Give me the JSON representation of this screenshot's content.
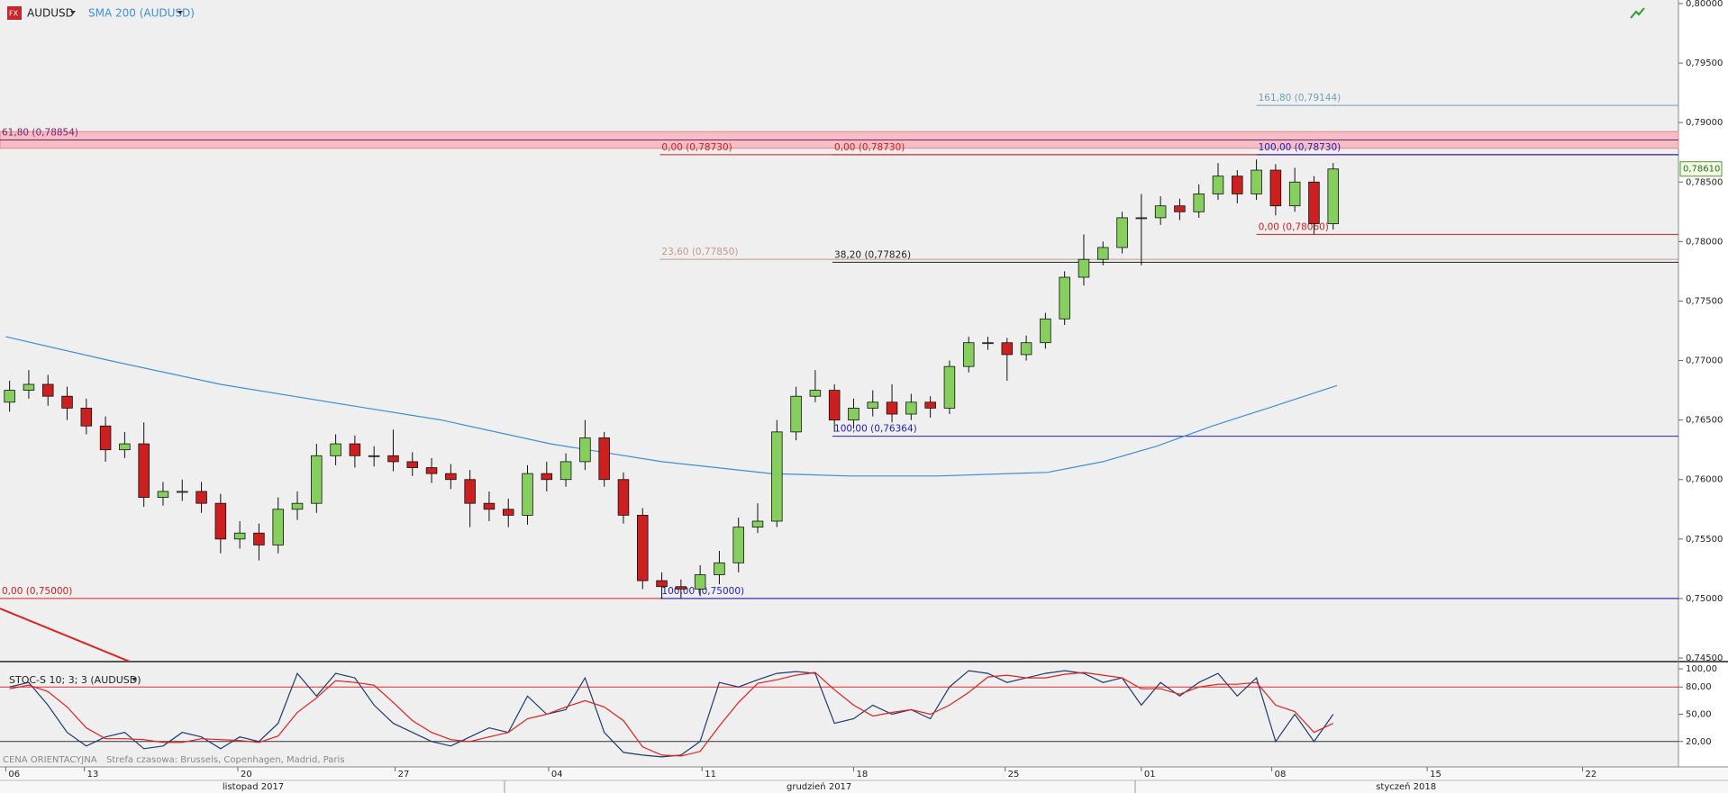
{
  "header": {
    "symbol": "AUDUSD"
  },
  "footer": {
    "price_note": "CENA ORIENTACYJNA",
    "timezone": "Strefa czasowa: Brussels, Copenhagen, Madrid, Paris"
  },
  "chart_data": [
    {
      "type": "candlestick",
      "open": [
        0.7665,
        0.7675,
        0.768,
        0.767,
        0.766,
        0.7645,
        0.7625,
        0.763,
        0.7585,
        0.759,
        0.759,
        0.758,
        0.755,
        0.7555,
        0.7545,
        0.7575,
        0.758,
        0.762,
        0.763,
        0.762,
        0.762,
        0.7615,
        0.761,
        0.7605,
        0.76,
        0.758,
        0.7575,
        0.757,
        0.7605,
        0.76,
        0.7615,
        0.7635,
        0.76,
        0.757,
        0.7515,
        0.751,
        0.7508,
        0.752,
        0.753,
        0.756,
        0.7565,
        0.764,
        0.767,
        0.7675,
        0.765,
        0.766,
        0.7665,
        0.7655,
        0.7665,
        0.766,
        0.7695,
        0.7715,
        0.7715,
        0.7705,
        0.7715,
        0.7735,
        0.777,
        0.7785,
        0.7795,
        0.782,
        0.782,
        0.783,
        0.7825,
        0.784,
        0.7855,
        0.784,
        0.786,
        0.783,
        0.785,
        0.7815
      ],
      "high": [
        0.7683,
        0.7692,
        0.7688,
        0.7678,
        0.7668,
        0.7653,
        0.764,
        0.7648,
        0.7598,
        0.76,
        0.7598,
        0.7588,
        0.7565,
        0.7563,
        0.7585,
        0.759,
        0.763,
        0.7638,
        0.7637,
        0.7628,
        0.7642,
        0.7623,
        0.7618,
        0.7613,
        0.7608,
        0.759,
        0.7584,
        0.7612,
        0.7615,
        0.7622,
        0.765,
        0.764,
        0.7606,
        0.7576,
        0.7522,
        0.7516,
        0.7528,
        0.754,
        0.7568,
        0.758,
        0.765,
        0.7678,
        0.7692,
        0.768,
        0.7668,
        0.7675,
        0.768,
        0.7672,
        0.767,
        0.77,
        0.772,
        0.772,
        0.7719,
        0.7721,
        0.774,
        0.7775,
        0.7806,
        0.78,
        0.7825,
        0.784,
        0.7838,
        0.7836,
        0.7848,
        0.7866,
        0.786,
        0.7869,
        0.7865,
        0.7862,
        0.7855,
        0.7866
      ],
      "low": [
        0.7657,
        0.7668,
        0.7662,
        0.765,
        0.7638,
        0.7615,
        0.7618,
        0.7577,
        0.7578,
        0.7582,
        0.7572,
        0.7538,
        0.7542,
        0.7532,
        0.7538,
        0.7566,
        0.7572,
        0.7612,
        0.761,
        0.7611,
        0.7607,
        0.7603,
        0.7597,
        0.7592,
        0.756,
        0.7565,
        0.756,
        0.7562,
        0.759,
        0.7594,
        0.7608,
        0.7594,
        0.7563,
        0.7508,
        0.75,
        0.75,
        0.7502,
        0.7512,
        0.7522,
        0.7555,
        0.756,
        0.7633,
        0.7665,
        0.764,
        0.7643,
        0.7653,
        0.7648,
        0.765,
        0.7652,
        0.7655,
        0.769,
        0.7709,
        0.7683,
        0.77,
        0.771,
        0.773,
        0.7763,
        0.778,
        0.779,
        0.778,
        0.7814,
        0.7818,
        0.782,
        0.7835,
        0.7832,
        0.7835,
        0.7822,
        0.7825,
        0.7806,
        0.781
      ],
      "close": [
        0.7675,
        0.768,
        0.767,
        0.766,
        0.7645,
        0.7625,
        0.763,
        0.7585,
        0.759,
        0.759,
        0.758,
        0.755,
        0.7555,
        0.7545,
        0.7575,
        0.758,
        0.762,
        0.763,
        0.762,
        0.762,
        0.7615,
        0.761,
        0.7605,
        0.76,
        0.758,
        0.7575,
        0.757,
        0.7605,
        0.76,
        0.7615,
        0.7635,
        0.76,
        0.757,
        0.7515,
        0.751,
        0.7508,
        0.752,
        0.753,
        0.756,
        0.7565,
        0.764,
        0.767,
        0.7675,
        0.765,
        0.766,
        0.7665,
        0.7655,
        0.7665,
        0.766,
        0.7695,
        0.7715,
        0.7715,
        0.7705,
        0.7715,
        0.7735,
        0.777,
        0.7785,
        0.7795,
        0.782,
        0.782,
        0.783,
        0.7825,
        0.784,
        0.7855,
        0.784,
        0.786,
        0.783,
        0.785,
        0.7815,
        0.7861
      ],
      "up_color": "#86cf5e",
      "down_color": "#cc1f1f",
      "xlim": [
        0,
        87.5
      ],
      "ylim": [
        0.7447,
        0.8003
      ],
      "yticks": [
        {
          "value": 0.745,
          "label": "0,74500"
        },
        {
          "value": 0.75,
          "label": "0,75000"
        },
        {
          "value": 0.755,
          "label": "0,75500"
        },
        {
          "value": 0.76,
          "label": "0,76000"
        },
        {
          "value": 0.765,
          "label": "0,76500"
        },
        {
          "value": 0.77,
          "label": "0,77000"
        },
        {
          "value": 0.775,
          "label": "0,77500"
        },
        {
          "value": 0.78,
          "label": "0,78000"
        },
        {
          "value": 0.785,
          "label": "0,78500"
        },
        {
          "value": 0.79,
          "label": "0,79000"
        },
        {
          "value": 0.795,
          "label": "0,79500"
        },
        {
          "value": 0.8,
          "label": "0,80000"
        }
      ],
      "xticks": [
        {
          "value": 0.3,
          "label": "06"
        },
        {
          "value": 4.4,
          "label": "13"
        },
        {
          "value": 12.4,
          "label": "20"
        },
        {
          "value": 20.6,
          "label": "27"
        },
        {
          "value": 28.6,
          "label": "04"
        },
        {
          "value": 36.6,
          "label": "11"
        },
        {
          "value": 44.5,
          "label": "18"
        },
        {
          "value": 52.4,
          "label": "25"
        },
        {
          "value": 59.5,
          "label": "01"
        },
        {
          "value": 66.3,
          "label": "08"
        },
        {
          "value": 74.4,
          "label": "15"
        },
        {
          "value": 82.5,
          "label": "22"
        }
      ],
      "months": [
        {
          "value": 13.2,
          "label": "listopad 2017"
        },
        {
          "value": 42.7,
          "label": "grudzień 2017"
        },
        {
          "value": 73.3,
          "label": "styczeń 2018"
        }
      ],
      "series": [
        {
          "name": "SMA 200 (AUDUSD)",
          "color": "#3d8fd6",
          "x": [
            0.3,
            5.7,
            11.5,
            17.2,
            23,
            28.7,
            34.5,
            40.2,
            44.3,
            48.9,
            54.6,
            57.5,
            60.3,
            63.2,
            66.1,
            69.7
          ],
          "values": [
            0.772,
            0.77,
            0.768,
            0.7665,
            0.765,
            0.763,
            0.7615,
            0.7605,
            0.7603,
            0.7603,
            0.7606,
            0.7615,
            0.7628,
            0.7645,
            0.766,
            0.7679
          ]
        }
      ],
      "levels": [
        {
          "label": "61,80 (0,78854)",
          "value": 0.78854,
          "x": 0,
          "color": "#7a1f6e",
          "band": true
        },
        {
          "label": "161,80 (0,79144)",
          "value": 0.79144,
          "x": 65.5,
          "color": "#6f9fb8"
        },
        {
          "label": "0,00 (0,78730)",
          "value": 0.7873,
          "x": 34.4,
          "color": "#d02020"
        },
        {
          "label": "0,00 (0,78730)",
          "value": 0.7873,
          "x": 43.4,
          "color": "#d02020"
        },
        {
          "label": "100,00 (0,78730)",
          "value": 0.7873,
          "x": 65.5,
          "color": "#2020c0"
        },
        {
          "label": "0,00 (0,78060)",
          "value": 0.7806,
          "x": 65.5,
          "color": "#d02020"
        },
        {
          "label": "23,60 (0,77850)",
          "value": 0.7785,
          "x": 34.4,
          "color": "#c09a8a"
        },
        {
          "label": "38,20 (0,77826)",
          "value": 0.77826,
          "x": 43.4,
          "color": "#222222"
        },
        {
          "label": "100,00 (0,76364)",
          "value": 0.76364,
          "x": 43.4,
          "color": "#2020c0"
        },
        {
          "label": "0,00 (0,75000)",
          "value": 0.75,
          "x": 0,
          "color": "#d02020"
        },
        {
          "label": "100,00 (0,75000)",
          "value": 0.75,
          "x": 34.4,
          "color": "#2020c0"
        }
      ],
      "last_price": {
        "value": 0.7861,
        "label": "0,78610"
      }
    },
    {
      "type": "line",
      "title": "STOC-S 10; 3; 3 (AUDUSD)",
      "ylim": [
        -8,
        106
      ],
      "yticks": [
        {
          "value": 20,
          "label": "20,00"
        },
        {
          "value": 50,
          "label": "50,00"
        },
        {
          "value": 80,
          "label": "80,00"
        },
        {
          "value": 100,
          "label": "100,00"
        }
      ],
      "hlines": [
        {
          "value": 80,
          "color": "#e03030"
        },
        {
          "value": 20,
          "color": "#333333"
        }
      ],
      "series": [
        {
          "color": "#1f3a6e",
          "values": [
            80,
            85,
            60,
            30,
            15,
            25,
            30,
            12,
            15,
            30,
            25,
            12,
            25,
            20,
            40,
            95,
            70,
            95,
            90,
            60,
            40,
            30,
            20,
            15,
            25,
            35,
            30,
            70,
            50,
            55,
            90,
            30,
            8,
            5,
            3,
            5,
            20,
            85,
            80,
            88,
            95,
            97,
            95,
            40,
            45,
            60,
            50,
            55,
            45,
            80,
            98,
            95,
            85,
            90,
            95,
            98,
            95,
            85,
            90,
            60,
            85,
            70,
            85,
            95,
            70,
            90,
            20,
            50,
            20,
            50
          ]
        },
        {
          "color": "#e02020",
          "values": [
            78,
            82,
            75,
            58,
            35,
            23,
            23,
            22,
            19,
            19,
            23,
            22,
            21,
            19,
            26,
            52,
            68,
            87,
            85,
            82,
            63,
            43,
            30,
            22,
            20,
            25,
            30,
            45,
            50,
            58,
            65,
            58,
            43,
            14,
            5,
            4,
            9,
            37,
            63,
            84,
            88,
            93,
            96,
            77,
            60,
            48,
            52,
            55,
            50,
            60,
            74,
            91,
            93,
            90,
            90,
            94,
            96,
            93,
            90,
            78,
            78,
            72,
            80,
            83,
            83,
            85,
            60,
            53,
            30,
            40
          ]
        }
      ]
    }
  ]
}
